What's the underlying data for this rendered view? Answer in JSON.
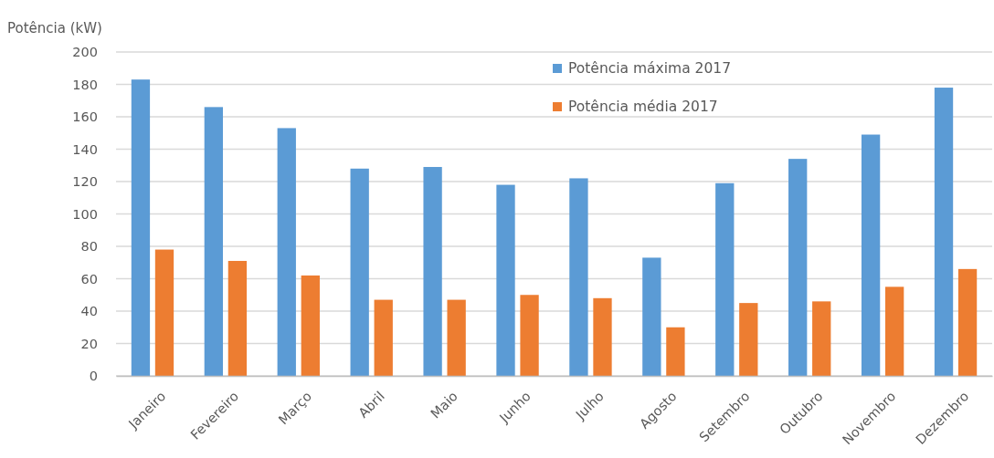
{
  "chart_data": {
    "type": "bar",
    "ylabel": "Potência (kW)",
    "categories": [
      "Janeiro",
      "Fevereiro",
      "Março",
      "Abril",
      "Maio",
      "Junho",
      "Julho",
      "Agosto",
      "Setembro",
      "Outubro",
      "Novembro",
      "Dezembro"
    ],
    "series": [
      {
        "name": "Potência máxima 2017",
        "color": "#5b9bd5",
        "values": [
          183,
          166,
          153,
          128,
          129,
          118,
          122,
          73,
          119,
          134,
          149,
          178
        ]
      },
      {
        "name": "Potência média 2017",
        "color": "#ed7d31",
        "values": [
          78,
          71,
          62,
          47,
          47,
          50,
          48,
          30,
          45,
          46,
          55,
          66
        ]
      }
    ],
    "ylim": [
      0,
      200
    ],
    "yticks": [
      0,
      20,
      40,
      60,
      80,
      100,
      120,
      140,
      160,
      180,
      200
    ],
    "grid": "y",
    "legend": "top right"
  }
}
